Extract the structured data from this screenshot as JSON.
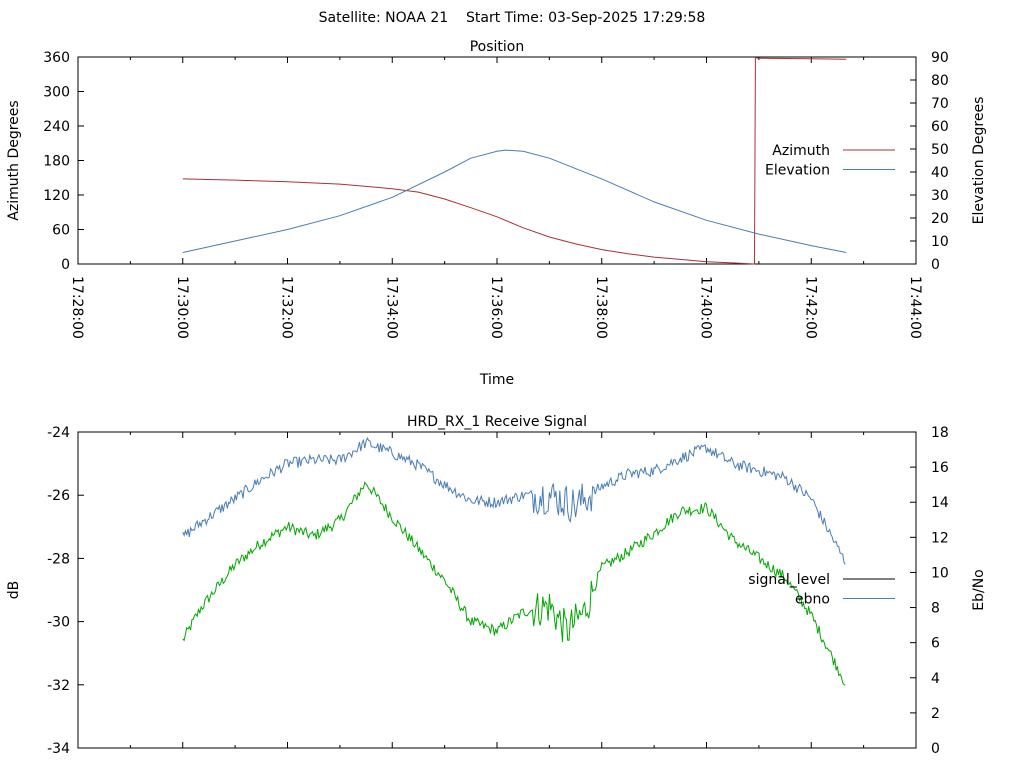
{
  "header": {
    "title": "Satellite: NOAA 21    Start Time: 03-Sep-2025 17:29:58"
  },
  "chart_data": [
    {
      "type": "line",
      "title": "Position",
      "xlabel": "Time",
      "ylabel": "Azimuth Degrees",
      "y2label": "Elevation Degrees",
      "xlim": [
        "17:28:00",
        "17:44:00"
      ],
      "x_ticks": [
        "17:28:00",
        "17:30:00",
        "17:32:00",
        "17:34:00",
        "17:36:00",
        "17:38:00",
        "17:40:00",
        "17:42:00",
        "17:44:00"
      ],
      "ylim": [
        0,
        360
      ],
      "y_ticks": [
        "0",
        "60",
        "120",
        "180",
        "240",
        "300",
        "360"
      ],
      "y2lim": [
        0,
        90
      ],
      "y2_ticks": [
        "0",
        "10",
        "20",
        "30",
        "40",
        "50",
        "60",
        "70",
        "80",
        "90"
      ],
      "legend_position": "right",
      "series": [
        {
          "name": "Azimuth",
          "axis": "y",
          "color": "#a83232",
          "x": [
            "17:30:00",
            "17:31:00",
            "17:32:00",
            "17:33:00",
            "17:34:00",
            "17:34:30",
            "17:35:00",
            "17:35:30",
            "17:36:00",
            "17:36:30",
            "17:37:00",
            "17:37:30",
            "17:38:00",
            "17:38:30",
            "17:39:00",
            "17:39:30",
            "17:40:00",
            "17:40:30",
            "17:40:55",
            "17:40:56",
            "17:41:00",
            "17:42:00",
            "17:42:40"
          ],
          "values": [
            148,
            146,
            143,
            139,
            131,
            125,
            113,
            98,
            82,
            63,
            47,
            35,
            25,
            18,
            12,
            8,
            4,
            2,
            0,
            359,
            358,
            357,
            356
          ]
        },
        {
          "name": "Elevation",
          "axis": "y2",
          "color": "#4a7cb5",
          "x": [
            "17:30:00",
            "17:31:00",
            "17:32:00",
            "17:33:00",
            "17:34:00",
            "17:35:00",
            "17:35:30",
            "17:36:00",
            "17:36:10",
            "17:36:30",
            "17:37:00",
            "17:38:00",
            "17:39:00",
            "17:40:00",
            "17:41:00",
            "17:42:00",
            "17:42:40"
          ],
          "values": [
            5,
            10,
            15,
            21,
            29,
            40,
            46,
            49,
            49.5,
            49,
            46,
            37,
            27,
            19,
            13,
            8,
            5
          ]
        }
      ]
    },
    {
      "type": "line",
      "title": "HRD_RX_1 Receive Signal",
      "xlabel": "",
      "ylabel": "dB",
      "y2label": "Eb/No",
      "xlim": [
        "17:28:00",
        "17:44:00"
      ],
      "ylim": [
        -34,
        -24
      ],
      "y_ticks": [
        "-24",
        "-26",
        "-28",
        "-30",
        "-32",
        "-34"
      ],
      "y2lim": [
        0,
        18
      ],
      "y2_ticks": [
        "0",
        "2",
        "4",
        "6",
        "8",
        "10",
        "12",
        "14",
        "16",
        "18"
      ],
      "legend_position": "right",
      "series": [
        {
          "name": "signal_level",
          "axis": "y",
          "color": "#00a800",
          "x": [
            "17:30:00",
            "17:30:20",
            "17:31:00",
            "17:31:30",
            "17:32:00",
            "17:32:30",
            "17:33:00",
            "17:33:30",
            "17:34:00",
            "17:34:30",
            "17:35:00",
            "17:35:30",
            "17:36:00",
            "17:36:30",
            "17:37:00",
            "17:37:20",
            "17:37:40",
            "17:38:00",
            "17:38:30",
            "17:39:00",
            "17:39:30",
            "17:40:00",
            "17:40:30",
            "17:41:00",
            "17:41:30",
            "17:42:00",
            "17:42:40"
          ],
          "values": [
            -30.6,
            -29.6,
            -28.2,
            -27.5,
            -27.0,
            -27.3,
            -26.8,
            -25.6,
            -26.7,
            -27.7,
            -28.7,
            -30.0,
            -30.3,
            -29.7,
            -29.5,
            -30.3,
            -29.7,
            -28.3,
            -27.8,
            -27.2,
            -26.5,
            -26.4,
            -27.4,
            -28.0,
            -28.6,
            -29.8,
            -32.0
          ]
        },
        {
          "name": "ebno",
          "axis": "y2",
          "color": "#4a7cb5",
          "x": [
            "17:30:00",
            "17:30:20",
            "17:31:00",
            "17:31:30",
            "17:32:00",
            "17:32:30",
            "17:33:00",
            "17:33:30",
            "17:34:00",
            "17:34:30",
            "17:35:00",
            "17:35:30",
            "17:36:00",
            "17:36:30",
            "17:37:00",
            "17:37:30",
            "17:38:00",
            "17:38:30",
            "17:39:00",
            "17:39:30",
            "17:40:00",
            "17:40:30",
            "17:41:00",
            "17:41:30",
            "17:42:00",
            "17:42:40"
          ],
          "values": [
            12.0,
            12.8,
            14.2,
            15.3,
            16.2,
            16.4,
            16.4,
            17.4,
            16.8,
            16.1,
            15.0,
            14.1,
            14.0,
            14.4,
            14.4,
            13.8,
            14.9,
            15.6,
            15.8,
            16.5,
            17.1,
            16.2,
            15.8,
            15.4,
            14.2,
            10.5
          ]
        }
      ]
    }
  ]
}
